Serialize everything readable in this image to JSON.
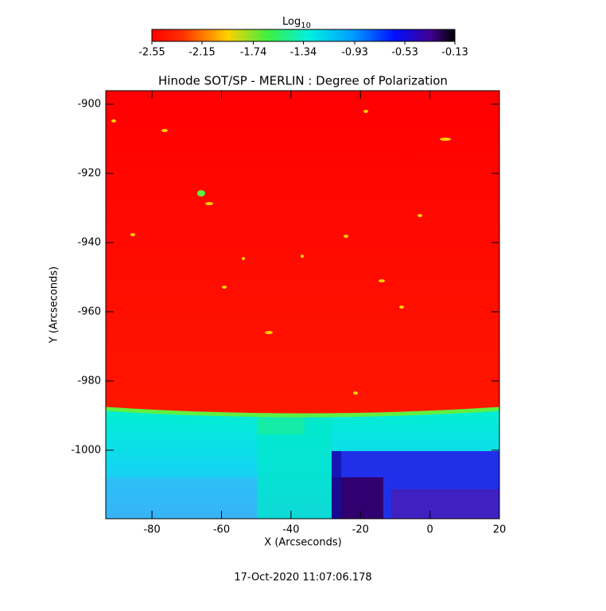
{
  "chart_data": {
    "type": "heatmap",
    "title": "Hinode SOT/SP - MERLIN : Degree of Polarization",
    "x_label": "X (Arcseconds)",
    "y_label": "Y (Arcseconds)",
    "xlim": [
      -93.3,
      20
    ],
    "ylim": [
      -1019.8,
      -896.1
    ],
    "xticks": [
      -80,
      -60,
      -40,
      -20,
      0,
      20
    ],
    "yticks": [
      -900,
      -920,
      -940,
      -960,
      -980,
      -1000
    ],
    "colorbar_label": "Log",
    "colorbar_label_subscript": "10",
    "colorbar_lim": [
      -2.55,
      -0.13
    ],
    "colorbar_ticks": [
      -2.55,
      -2.15,
      -1.74,
      -1.34,
      -0.93,
      -0.53,
      -0.13
    ],
    "footer": "17-Oct-2020 11:07:06.178"
  }
}
